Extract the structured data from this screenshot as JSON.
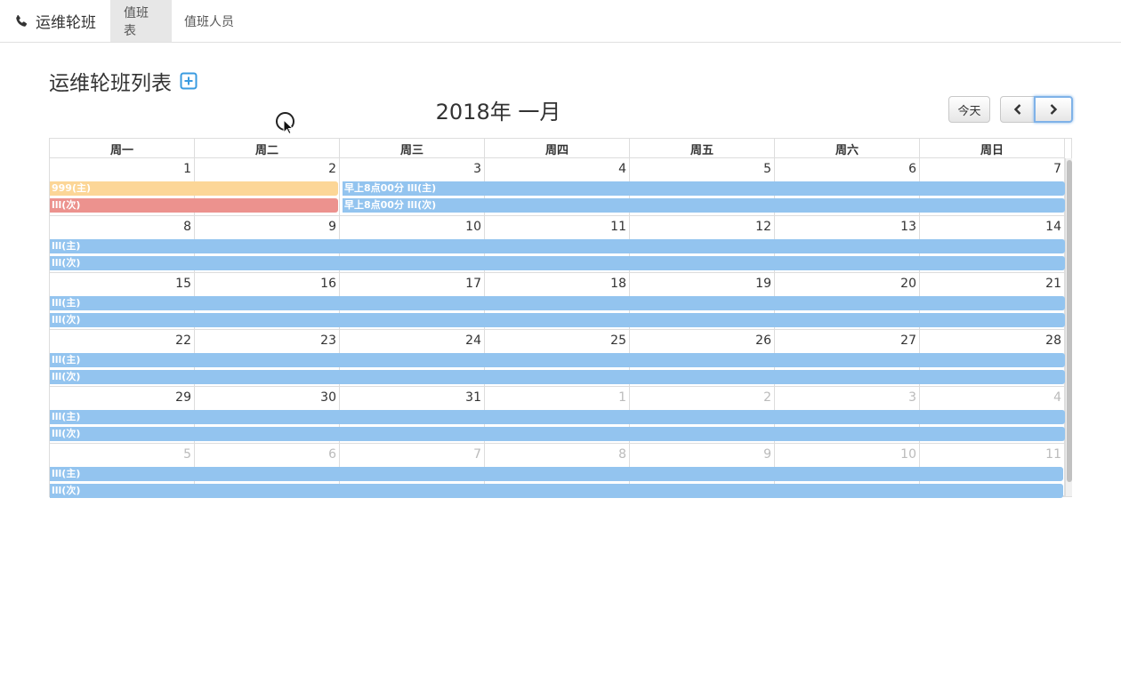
{
  "navbar": {
    "brand_icon": "phone-icon",
    "brand": "运维轮班",
    "tabs": [
      {
        "label": "值班表",
        "active": true
      },
      {
        "label": "值班人员",
        "active": false
      }
    ]
  },
  "page": {
    "title": "运维轮班列表",
    "add_icon": "plus-square-icon",
    "accent_color": "#3a9be0"
  },
  "calendar": {
    "title": "2018年 一月",
    "today_label": "今天",
    "prev_icon": "chevron-left-icon",
    "next_icon": "chevron-right-icon",
    "weekdays": [
      "周一",
      "周二",
      "周三",
      "周四",
      "周五",
      "周六",
      "周日"
    ],
    "weeks": [
      {
        "days": [
          {
            "n": "1",
            "other": false
          },
          {
            "n": "2",
            "other": false
          },
          {
            "n": "3",
            "other": false
          },
          {
            "n": "4",
            "other": false
          },
          {
            "n": "5",
            "other": false
          },
          {
            "n": "6",
            "other": false
          },
          {
            "n": "7",
            "other": false
          }
        ],
        "events": [
          {
            "label": "999(主)",
            "start": 0,
            "end": 1,
            "color": "orange",
            "lane": 0
          },
          {
            "label": "早上8点00分 lll(主)",
            "start": 2,
            "end": 6,
            "color": "blue",
            "lane": 0
          },
          {
            "label": "lll(次)",
            "start": 0,
            "end": 1,
            "color": "red",
            "lane": 1
          },
          {
            "label": "早上8点00分 lll(次)",
            "start": 2,
            "end": 6,
            "color": "blue",
            "lane": 1
          }
        ]
      },
      {
        "days": [
          {
            "n": "8",
            "other": false
          },
          {
            "n": "9",
            "other": false
          },
          {
            "n": "10",
            "other": false
          },
          {
            "n": "11",
            "other": false
          },
          {
            "n": "12",
            "other": false
          },
          {
            "n": "13",
            "other": false
          },
          {
            "n": "14",
            "other": false
          }
        ],
        "events": [
          {
            "label": "lll(主)",
            "start": 0,
            "end": 6,
            "color": "blue",
            "lane": 0
          },
          {
            "label": "lll(次)",
            "start": 0,
            "end": 6,
            "color": "blue",
            "lane": 1
          }
        ]
      },
      {
        "days": [
          {
            "n": "15",
            "other": false
          },
          {
            "n": "16",
            "other": false
          },
          {
            "n": "17",
            "other": false
          },
          {
            "n": "18",
            "other": false
          },
          {
            "n": "19",
            "other": false
          },
          {
            "n": "20",
            "other": false
          },
          {
            "n": "21",
            "other": false
          }
        ],
        "events": [
          {
            "label": "lll(主)",
            "start": 0,
            "end": 6,
            "color": "blue",
            "lane": 0
          },
          {
            "label": "lll(次)",
            "start": 0,
            "end": 6,
            "color": "blue",
            "lane": 1
          }
        ]
      },
      {
        "days": [
          {
            "n": "22",
            "other": false
          },
          {
            "n": "23",
            "other": false
          },
          {
            "n": "24",
            "other": false
          },
          {
            "n": "25",
            "other": false
          },
          {
            "n": "26",
            "other": false
          },
          {
            "n": "27",
            "other": false
          },
          {
            "n": "28",
            "other": false
          }
        ],
        "events": [
          {
            "label": "lll(主)",
            "start": 0,
            "end": 6,
            "color": "blue",
            "lane": 0
          },
          {
            "label": "lll(次)",
            "start": 0,
            "end": 6,
            "color": "blue",
            "lane": 1
          }
        ]
      },
      {
        "days": [
          {
            "n": "29",
            "other": false
          },
          {
            "n": "30",
            "other": false
          },
          {
            "n": "31",
            "other": false
          },
          {
            "n": "1",
            "other": true
          },
          {
            "n": "2",
            "other": true
          },
          {
            "n": "3",
            "other": true
          },
          {
            "n": "4",
            "other": true
          }
        ],
        "events": [
          {
            "label": "lll(主)",
            "start": 0,
            "end": 6,
            "color": "blue",
            "lane": 0
          },
          {
            "label": "lll(次)",
            "start": 0,
            "end": 6,
            "color": "blue",
            "lane": 1
          }
        ]
      },
      {
        "days": [
          {
            "n": "5",
            "other": true
          },
          {
            "n": "6",
            "other": true
          },
          {
            "n": "7",
            "other": true
          },
          {
            "n": "8",
            "other": true
          },
          {
            "n": "9",
            "other": true
          },
          {
            "n": "10",
            "other": true
          },
          {
            "n": "11",
            "other": true
          }
        ],
        "events": [
          {
            "label": "lll(主)",
            "start": 0,
            "end": 6,
            "color": "blue",
            "lane": 0
          },
          {
            "label": "lll(次)",
            "start": 0,
            "end": 6,
            "color": "blue",
            "lane": 1
          }
        ]
      }
    ]
  },
  "colors": {
    "event_blue": "#93c4ef",
    "event_orange": "#fcd697",
    "event_red": "#ec928e",
    "focus_ring": "#7fb2e8"
  }
}
